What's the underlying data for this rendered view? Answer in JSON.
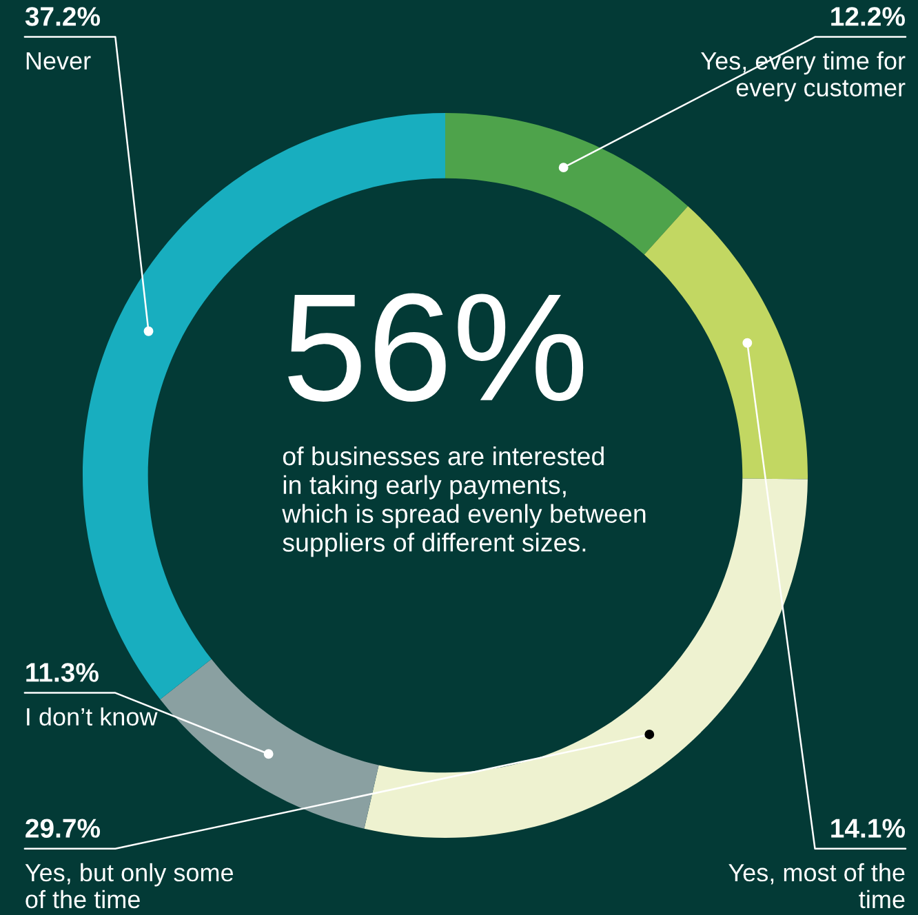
{
  "chart_data": {
    "type": "donut",
    "categories": [
      "Yes, every time for every customer",
      "Yes, most of the time",
      "Yes, but only some of the time",
      "I don’t know",
      "Never"
    ],
    "values": [
      12.2,
      14.1,
      29.7,
      11.3,
      37.2
    ],
    "value_labels": [
      "12.2%",
      "14.1%",
      "29.7%",
      "11.3%",
      "37.2%"
    ],
    "colors": [
      "#4ea34b",
      "#c2d762",
      "#eef2d0",
      "#8aa0a1",
      "#18aebf"
    ],
    "annotations": [
      "56%",
      "of businesses are interested in taking early payments, which is spread evenly between suppliers of different sizes."
    ],
    "legend": false
  }
}
